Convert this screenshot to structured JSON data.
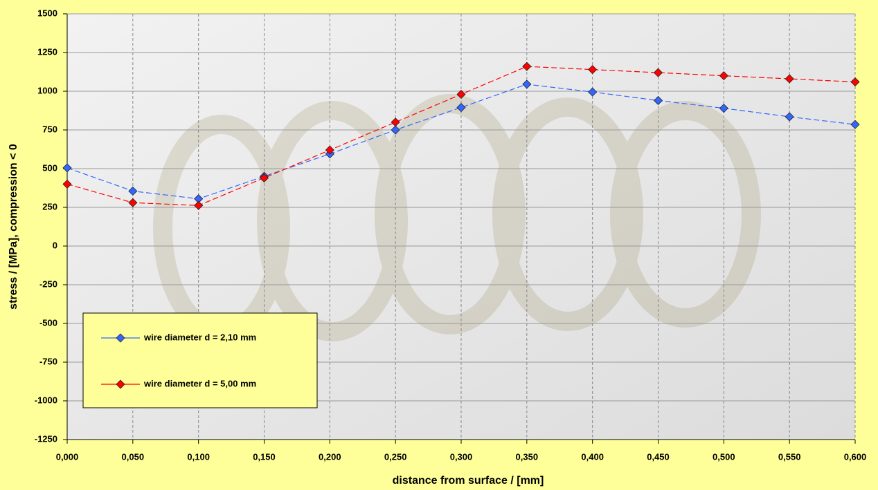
{
  "chart_data": {
    "type": "line",
    "x_label": "distance from surface / [mm]",
    "y_label": "stress / [MPa], compression < 0",
    "x": [
      0,
      0.05,
      0.1,
      0.15,
      0.2,
      0.25,
      0.3,
      0.35,
      0.4,
      0.45,
      0.5,
      0.55,
      0.6
    ],
    "series": [
      {
        "name": "wire diameter d = 2,10 mm",
        "color": "#3366ff",
        "values": [
          505,
          355,
          305,
          450,
          595,
          750,
          895,
          1045,
          995,
          940,
          890,
          835,
          785
        ]
      },
      {
        "name": "wire diameter d = 5,00 mm",
        "color": "#ff0000",
        "values": [
          400,
          280,
          262,
          440,
          620,
          800,
          980,
          1160,
          1140,
          1120,
          1100,
          1080,
          1060
        ]
      }
    ],
    "xlim": [
      0,
      0.6
    ],
    "xticks": [
      {
        "value": 0,
        "label": "0,000"
      },
      {
        "value": 0.05,
        "label": "0,050"
      },
      {
        "value": 0.1,
        "label": "0,100"
      },
      {
        "value": 0.15,
        "label": "0,150"
      },
      {
        "value": 0.2,
        "label": "0,200"
      },
      {
        "value": 0.25,
        "label": "0,250"
      },
      {
        "value": 0.3,
        "label": "0,300"
      },
      {
        "value": 0.35,
        "label": "0,350"
      },
      {
        "value": 0.4,
        "label": "0,400"
      },
      {
        "value": 0.45,
        "label": "0,450"
      },
      {
        "value": 0.5,
        "label": "0,500"
      },
      {
        "value": 0.55,
        "label": "0,550"
      },
      {
        "value": 0.6,
        "label": "0,600"
      }
    ],
    "ylim": [
      -1250,
      1500
    ],
    "yticks": [
      1500,
      1250,
      1000,
      750,
      500,
      250,
      0,
      -250,
      -500,
      -750,
      -1000,
      -1250
    ],
    "grid": true
  }
}
